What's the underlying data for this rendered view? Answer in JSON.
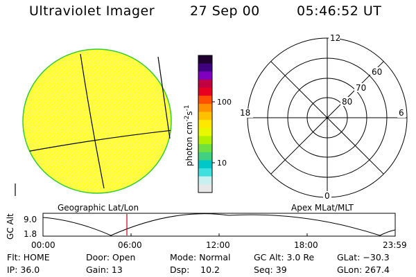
{
  "header": {
    "instrument": "Ultraviolet Imager",
    "date": "27 Sep 00",
    "time": "05:46:52 UT"
  },
  "colorbar": {
    "label_html": "photon cm<tspan dy='-5' font-size='9'>-2</tspan><tspan dy='5'>s</tspan><tspan dy='-5' font-size='9'>-1</tspan>",
    "label_plain": "photon cm-2s-1",
    "tick_100": "100",
    "tick_10": "10",
    "colors": [
      "#e8e8e8",
      "#c8f0f0",
      "#40e0e0",
      "#00c8c8",
      "#40d080",
      "#70e040",
      "#b0f000",
      "#e8f800",
      "#ffe800",
      "#ffc000",
      "#ff9000",
      "#ff5000",
      "#e80020",
      "#c00040",
      "#8000c0",
      "#400080",
      "#200030"
    ]
  },
  "geo_panel": {
    "label": "Geographic Lat/Lon",
    "disk_color": "#ffff33",
    "disk_speckle": "#f4f4a0",
    "rim_color": "#33cc33"
  },
  "polar_panel": {
    "label": "Apex MLat/MLT",
    "mlt_12": "12",
    "mlt_18": "18",
    "mlt_6": "6",
    "mlt_0": "0",
    "lat_60": "60",
    "lat_70": "70",
    "lat_80": "80"
  },
  "altitude_plot": {
    "ylabel": "GC Alt",
    "ytick_top": "9.0",
    "ytick_bottom": "1.8",
    "xticks": [
      "00:00",
      "06:00",
      "12:00",
      "18:00",
      "23:59"
    ],
    "marker_color": "#cc0000"
  },
  "footer": {
    "flt": "Flt: HOME",
    "ip": "IP: 36.0",
    "door": "Door: Open",
    "gain": "Gain: 13",
    "mode": "Mode: Normal",
    "dsp": "Dsp:    10.2",
    "gcalt": "GC Alt: 3.0 Re",
    "seq": "Seq: 39",
    "glat": "GLat: −30.3",
    "glon": "GLon: 267.4"
  }
}
